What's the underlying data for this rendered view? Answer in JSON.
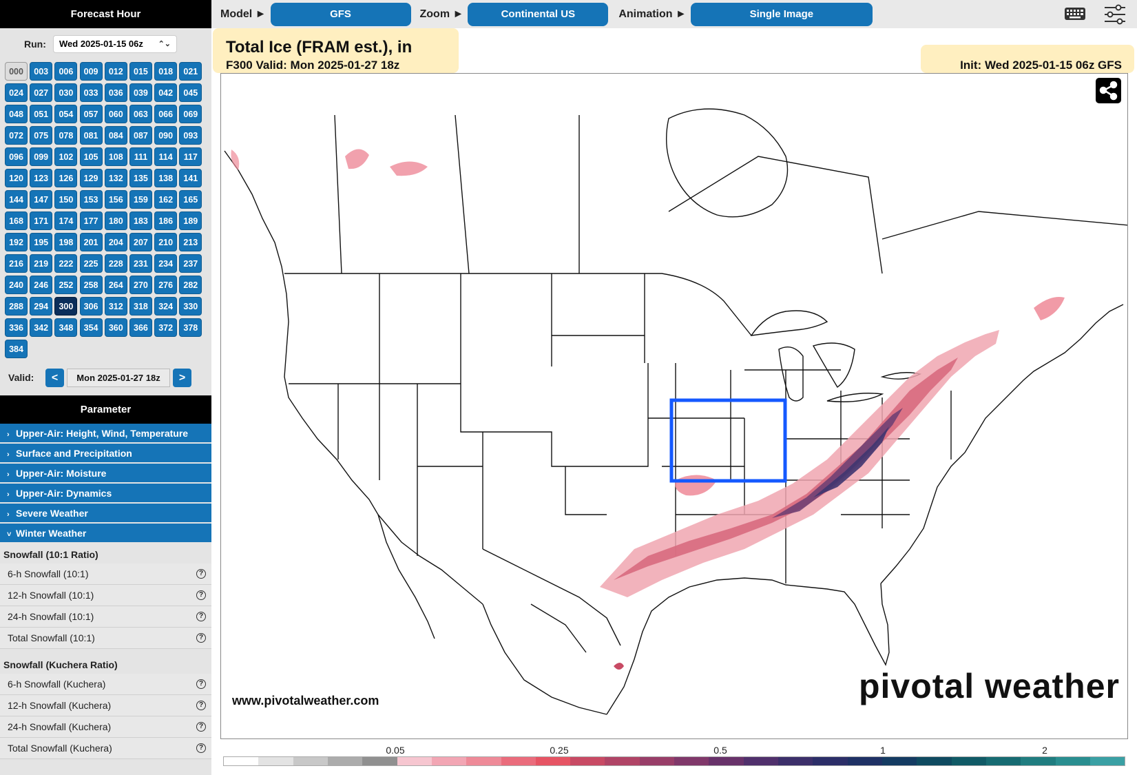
{
  "sidebar": {
    "forecast_hour_title": "Forecast Hour",
    "run_label": "Run:",
    "run_value": "Wed 2025-01-15 06z",
    "hours": [
      "000",
      "003",
      "006",
      "009",
      "012",
      "015",
      "018",
      "021",
      "024",
      "027",
      "030",
      "033",
      "036",
      "039",
      "042",
      "045",
      "048",
      "051",
      "054",
      "057",
      "060",
      "063",
      "066",
      "069",
      "072",
      "075",
      "078",
      "081",
      "084",
      "087",
      "090",
      "093",
      "096",
      "099",
      "102",
      "105",
      "108",
      "111",
      "114",
      "117",
      "120",
      "123",
      "126",
      "129",
      "132",
      "135",
      "138",
      "141",
      "144",
      "147",
      "150",
      "153",
      "156",
      "159",
      "162",
      "165",
      "168",
      "171",
      "174",
      "177",
      "180",
      "183",
      "186",
      "189",
      "192",
      "195",
      "198",
      "201",
      "204",
      "207",
      "210",
      "213",
      "216",
      "219",
      "222",
      "225",
      "228",
      "231",
      "234",
      "237",
      "240",
      "246",
      "252",
      "258",
      "264",
      "270",
      "276",
      "282",
      "288",
      "294",
      "300",
      "306",
      "312",
      "318",
      "324",
      "330",
      "336",
      "342",
      "348",
      "354",
      "360",
      "366",
      "372",
      "378",
      "384"
    ],
    "selected_hour": "300",
    "valid_label": "Valid:",
    "prev_label": "<",
    "next_label": ">",
    "valid_value": "Mon 2025-01-27 18z",
    "parameter_title": "Parameter",
    "categories": [
      {
        "label": "Upper-Air: Height, Wind, Temperature",
        "arrow": "›"
      },
      {
        "label": "Surface and Precipitation",
        "arrow": "›"
      },
      {
        "label": "Upper-Air: Moisture",
        "arrow": "›"
      },
      {
        "label": "Upper-Air: Dynamics",
        "arrow": "›"
      },
      {
        "label": "Severe Weather",
        "arrow": "›"
      },
      {
        "label": "Winter Weather",
        "arrow": "˅"
      }
    ],
    "groups": [
      {
        "title": "Snowfall (10:1 Ratio)",
        "items": [
          "6-h Snowfall (10:1)",
          "12-h Snowfall (10:1)",
          "24-h Snowfall (10:1)",
          "Total Snowfall (10:1)"
        ]
      },
      {
        "title": "Snowfall (Kuchera Ratio)",
        "items": [
          "6-h Snowfall (Kuchera)",
          "12-h Snowfall (Kuchera)",
          "24-h Snowfall (Kuchera)",
          "Total Snowfall (Kuchera)"
        ]
      }
    ],
    "help_glyph": "?"
  },
  "topbar": {
    "model_label": "Model ►",
    "model_value": "GFS",
    "zoom_label": "Zoom ►",
    "zoom_value": "Continental US",
    "animation_label": "Animation ►",
    "animation_value": "Single Image",
    "icons": [
      "keyboard-icon",
      "sliders-icon"
    ]
  },
  "map": {
    "title": "Total Ice (FRAM est.), in",
    "subtitle": "F300 Valid: Mon 2025-01-27 18z",
    "init": "Init: Wed 2025-01-15 06z GFS",
    "website": "www.pivotalweather.com",
    "logo": "pivotal weather",
    "share_icon": "share-icon",
    "colorbar_ticks": [
      "0.05",
      "0.25",
      "0.5",
      "1",
      "2"
    ],
    "colorbar_colors": [
      "#ffffff",
      "#e3e3e3",
      "#c8c8c8",
      "#acacac",
      "#909090",
      "#f6c6d0",
      "#f2a6b4",
      "#ee8a98",
      "#ea6c7c",
      "#e65464",
      "#c84a64",
      "#b04466",
      "#983e68",
      "#80386a",
      "#68326a",
      "#50306c",
      "#3c2f6a",
      "#2c2e68",
      "#1f3165",
      "#143b62",
      "#0f4a60",
      "#105a66",
      "#176b72",
      "#207d80",
      "#2a8e90",
      "#3aa0a4"
    ],
    "accent": "#1574b7",
    "highlight": "#ffe08c",
    "selection_box_color": "#1559ff"
  }
}
